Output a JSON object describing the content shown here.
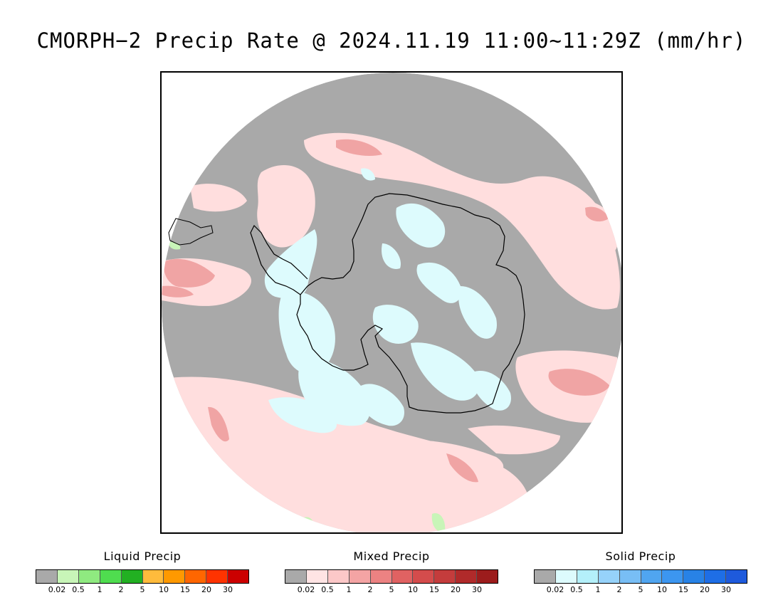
{
  "title": "CMORPH−2 Precip Rate @ 2024.11.19 11:00~11:29Z (mm/hr)",
  "colors": {
    "no_precip": "#a9a9a9",
    "mixed_light": "#ffdede",
    "mixed_mid": "#f5a8a8",
    "mixed_heavy": "#e07878",
    "solid_light": "#ddfbfd",
    "liquid_light": "#c8f5b8",
    "coast": "#000000"
  },
  "legends": [
    {
      "title": "Liquid Precip",
      "colors": [
        "#a9a9a9",
        "#c8f5b8",
        "#8fea80",
        "#4fdd4f",
        "#22b022",
        "#ffbb3c",
        "#ff9900",
        "#ff6600",
        "#ff3300",
        "#cc0000"
      ],
      "ticks": [
        "0.02",
        "0.5",
        "1",
        "2",
        "5",
        "10",
        "15",
        "20",
        "30"
      ]
    },
    {
      "title": "Mixed Precip",
      "colors": [
        "#a9a9a9",
        "#ffe4e4",
        "#fcc8c8",
        "#f4a4a4",
        "#ec8282",
        "#e06262",
        "#d44c4c",
        "#c43c3c",
        "#b02a2a",
        "#9c1c1c"
      ],
      "ticks": [
        "0.02",
        "0.5",
        "1",
        "2",
        "5",
        "10",
        "15",
        "20",
        "30"
      ]
    },
    {
      "title": "Solid Precip",
      "colors": [
        "#a9a9a9",
        "#ddfbfd",
        "#b4f0fa",
        "#96d2fa",
        "#78bef5",
        "#50a5f0",
        "#3c96f0",
        "#2882e6",
        "#1e6ee6",
        "#1e5adc"
      ],
      "ticks": [
        "0.02",
        "0.5",
        "1",
        "2",
        "5",
        "10",
        "15",
        "20",
        "30"
      ]
    }
  ]
}
